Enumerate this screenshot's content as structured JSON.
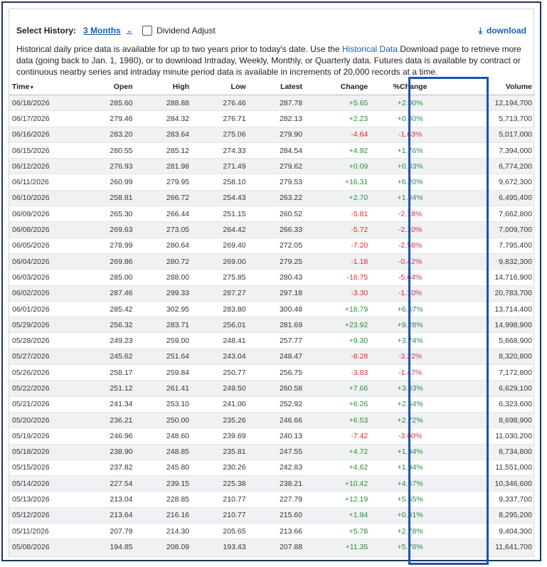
{
  "toolbar": {
    "select_history_label": "Select History:",
    "history_value": "3 Months",
    "dividend_label": "Dividend Adjust",
    "download_label": "download"
  },
  "description": {
    "part1": "Historical daily price data is available for up to two years prior to today's date. Use the ",
    "link": "Historical Data",
    "part2": " Download page to retrieve more data (going back to Jan. 1, 1980), or to download Intraday, Weekly, Monthly, or Quarterly data. Futures data is available by contract or continuous nearby series and intraday minute period data is available in increments of 20,000 records at a time."
  },
  "colors": {
    "accent": "#1a5fb4",
    "positive": "#2e8b3e",
    "negative": "#d6322f",
    "highlight_box": "#1f4fb5"
  },
  "table": {
    "headers": {
      "time": "Time",
      "open": "Open",
      "high": "High",
      "low": "Low",
      "latest": "Latest",
      "change": "Change",
      "pct": "%Change",
      "volume": "Volume"
    },
    "rows": [
      {
        "time": "06/18/2026",
        "open": "285.60",
        "high": "288.88",
        "low": "276.46",
        "latest": "287.78",
        "change": "+5.65",
        "pct": "+2.00%",
        "volume": "12,194,700"
      },
      {
        "time": "06/17/2026",
        "open": "279.46",
        "high": "284.32",
        "low": "276.71",
        "latest": "282.13",
        "change": "+2.23",
        "pct": "+0.80%",
        "volume": "5,713,700"
      },
      {
        "time": "06/16/2026",
        "open": "283.20",
        "high": "283.64",
        "low": "275.06",
        "latest": "279.90",
        "change": "-4.64",
        "pct": "-1.63%",
        "volume": "5,017,000"
      },
      {
        "time": "06/15/2026",
        "open": "280.55",
        "high": "285.12",
        "low": "274.33",
        "latest": "284.54",
        "change": "+4.92",
        "pct": "+1.76%",
        "volume": "7,394,000"
      },
      {
        "time": "06/12/2026",
        "open": "276.93",
        "high": "281.98",
        "low": "271.49",
        "latest": "279.62",
        "change": "+0.09",
        "pct": "+0.03%",
        "volume": "6,774,200"
      },
      {
        "time": "06/11/2026",
        "open": "260.99",
        "high": "279.95",
        "low": "258.10",
        "latest": "279.53",
        "change": "+16.31",
        "pct": "+6.20%",
        "volume": "9,672,300"
      },
      {
        "time": "06/10/2026",
        "open": "258.81",
        "high": "266.72",
        "low": "254.43",
        "latest": "263.22",
        "change": "+2.70",
        "pct": "+1.04%",
        "volume": "6,495,400"
      },
      {
        "time": "06/09/2026",
        "open": "265.30",
        "high": "266.44",
        "low": "251.15",
        "latest": "260.52",
        "change": "-5.81",
        "pct": "-2.18%",
        "volume": "7,662,800"
      },
      {
        "time": "06/08/2026",
        "open": "269.63",
        "high": "273.05",
        "low": "264.42",
        "latest": "266.33",
        "change": "-5.72",
        "pct": "-2.10%",
        "volume": "7,009,700"
      },
      {
        "time": "06/05/2026",
        "open": "278.99",
        "high": "280.64",
        "low": "269.40",
        "latest": "272.05",
        "change": "-7.20",
        "pct": "-2.58%",
        "volume": "7,795,400"
      },
      {
        "time": "06/04/2026",
        "open": "269.86",
        "high": "280.72",
        "low": "269.00",
        "latest": "279.25",
        "change": "-1.18",
        "pct": "-0.42%",
        "volume": "9,832,300"
      },
      {
        "time": "06/03/2026",
        "open": "285.00",
        "high": "288.00",
        "low": "275.85",
        "latest": "280.43",
        "change": "-16.75",
        "pct": "-5.64%",
        "volume": "14,716,900"
      },
      {
        "time": "06/02/2026",
        "open": "287.46",
        "high": "299.33",
        "low": "287.27",
        "latest": "297.18",
        "change": "-3.30",
        "pct": "-1.10%",
        "volume": "20,783,700"
      },
      {
        "time": "06/01/2026",
        "open": "285.42",
        "high": "302.95",
        "low": "283.80",
        "latest": "300.48",
        "change": "+18.79",
        "pct": "+6.67%",
        "volume": "13,714,400"
      },
      {
        "time": "05/29/2026",
        "open": "256.32",
        "high": "283.71",
        "low": "256.01",
        "latest": "281.69",
        "change": "+23.92",
        "pct": "+9.28%",
        "volume": "14,998,900"
      },
      {
        "time": "05/28/2026",
        "open": "249.23",
        "high": "259.00",
        "low": "248.41",
        "latest": "257.77",
        "change": "+9.30",
        "pct": "+3.74%",
        "volume": "5,668,900"
      },
      {
        "time": "05/27/2026",
        "open": "245.62",
        "high": "251.64",
        "low": "243.04",
        "latest": "248.47",
        "change": "-8.28",
        "pct": "-3.22%",
        "volume": "8,320,800"
      },
      {
        "time": "05/26/2026",
        "open": "258.17",
        "high": "259.84",
        "low": "250.77",
        "latest": "256.75",
        "change": "-3.83",
        "pct": "-1.47%",
        "volume": "7,172,800"
      },
      {
        "time": "05/22/2026",
        "open": "251.12",
        "high": "261.41",
        "low": "249.50",
        "latest": "260.58",
        "change": "+7.66",
        "pct": "+3.03%",
        "volume": "6,629,100"
      },
      {
        "time": "05/21/2026",
        "open": "241.34",
        "high": "253.10",
        "low": "241.00",
        "latest": "252.92",
        "change": "+6.26",
        "pct": "+2.54%",
        "volume": "6,323,600"
      },
      {
        "time": "05/20/2026",
        "open": "236.21",
        "high": "250.00",
        "low": "235.26",
        "latest": "246.66",
        "change": "+6.53",
        "pct": "+2.72%",
        "volume": "8,698,900"
      },
      {
        "time": "05/19/2026",
        "open": "246.96",
        "high": "248.60",
        "low": "239.69",
        "latest": "240.13",
        "change": "-7.42",
        "pct": "-3.00%",
        "volume": "11,030,200"
      },
      {
        "time": "05/18/2026",
        "open": "238.90",
        "high": "248.85",
        "low": "235.81",
        "latest": "247.55",
        "change": "+4.72",
        "pct": "+1.94%",
        "volume": "8,734,800"
      },
      {
        "time": "05/15/2026",
        "open": "237.82",
        "high": "245.80",
        "low": "230.26",
        "latest": "242.83",
        "change": "+4.62",
        "pct": "+1.94%",
        "volume": "11,551,000"
      },
      {
        "time": "05/14/2026",
        "open": "227.54",
        "high": "239.15",
        "low": "225.38",
        "latest": "238.21",
        "change": "+10.42",
        "pct": "+4.57%",
        "volume": "10,346,600"
      },
      {
        "time": "05/13/2026",
        "open": "213.04",
        "high": "228.85",
        "low": "210.77",
        "latest": "227.79",
        "change": "+12.19",
        "pct": "+5.65%",
        "volume": "9,337,700"
      },
      {
        "time": "05/12/2026",
        "open": "213.64",
        "high": "216.16",
        "low": "210.77",
        "latest": "215.60",
        "change": "+1.94",
        "pct": "+0.91%",
        "volume": "8,295,200"
      },
      {
        "time": "05/11/2026",
        "open": "207.79",
        "high": "214.30",
        "low": "205.65",
        "latest": "213.66",
        "change": "+5.78",
        "pct": "+2.78%",
        "volume": "9,404,300"
      },
      {
        "time": "05/08/2026",
        "open": "194.85",
        "high": "208.09",
        "low": "193.43",
        "latest": "207.88",
        "change": "+11.35",
        "pct": "+5.78%",
        "volume": "11,641,700"
      }
    ]
  }
}
